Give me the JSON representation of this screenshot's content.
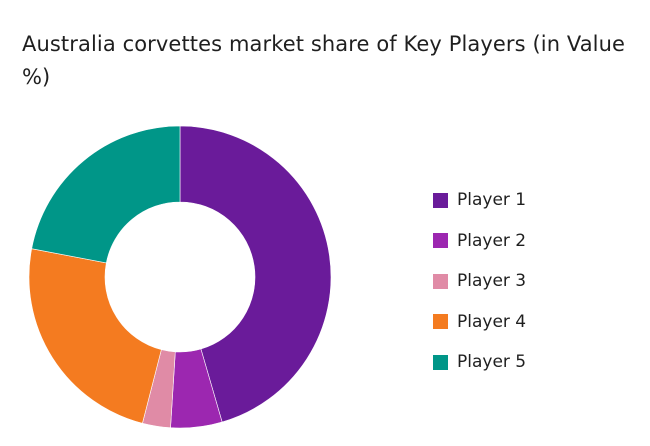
{
  "chart_data": {
    "type": "pie",
    "variant": "donut",
    "title": "Australia corvettes market share of Key Players (in Value %)",
    "legend_position": "right",
    "series": [
      {
        "name": "Player 1",
        "value": 45.5,
        "color": "#6a1b9a"
      },
      {
        "name": "Player 2",
        "value": 5.5,
        "color": "#9c27b0"
      },
      {
        "name": "Player 3",
        "value": 3.0,
        "color": "#e08ba6"
      },
      {
        "name": "Player 4",
        "value": 24.0,
        "color": "#f47b20"
      },
      {
        "name": "Player 5",
        "value": 22.0,
        "color": "#009688"
      }
    ]
  }
}
